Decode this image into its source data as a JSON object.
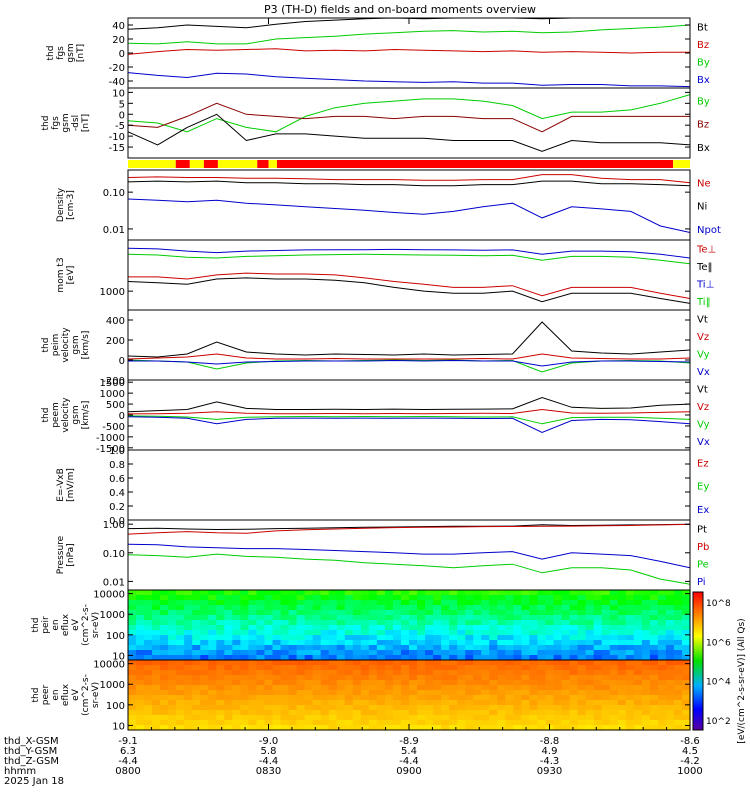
{
  "chart_data": {
    "type": "line",
    "title": "P3 (TH-D) fields and on-board moments overview",
    "panels": [
      {
        "id": "fgs_gsm",
        "ylabel": [
          "thd",
          "fgs",
          "gsm",
          "[nT]"
        ],
        "ylim": [
          -50,
          50
        ],
        "scale": "linear",
        "ticks": [
          "40",
          "20",
          "0",
          "-20",
          "-40"
        ],
        "tick_values": [
          40,
          20,
          0,
          -20,
          -40
        ],
        "series": [
          {
            "name": "Bt",
            "color": "#000000",
            "y": [
              34,
              36,
              40,
              38,
              36,
              41,
              45,
              47,
              49,
              50,
              49,
              50,
              50,
              50,
              49,
              50,
              50,
              50,
              50,
              51
            ]
          },
          {
            "name": "Bz",
            "color": "#cc0000",
            "y": [
              -2,
              2,
              5,
              4,
              5,
              6,
              3,
              4,
              3,
              5,
              4,
              3,
              2,
              3,
              1,
              2,
              1,
              0,
              1,
              1
            ]
          },
          {
            "name": "By",
            "color": "#00cc00",
            "y": [
              14,
              13,
              16,
              13,
              13,
              20,
              22,
              24,
              27,
              29,
              31,
              32,
              30,
              31,
              29,
              30,
              33,
              35,
              37,
              40
            ]
          },
          {
            "name": "Bx",
            "color": "#0000cc",
            "y": [
              -28,
              -32,
              -35,
              -29,
              -30,
              -34,
              -36,
              -38,
              -40,
              -41,
              -42,
              -41,
              -43,
              -43,
              -46,
              -45,
              -45,
              -47,
              -47,
              -48
            ]
          }
        ]
      },
      {
        "id": "fgs_dsl",
        "ylabel": [
          "thd",
          "fgs",
          "gsm",
          "-dsl",
          "[nT]"
        ],
        "ylim": [
          -20,
          12
        ],
        "scale": "linear",
        "ticks": [
          "10",
          "5",
          "0",
          "-5",
          "-10",
          "-15"
        ],
        "tick_values": [
          10,
          5,
          0,
          -5,
          -10,
          -15
        ],
        "series": [
          {
            "name": "By",
            "color": "#00cc00",
            "y": [
              -3,
              -4,
              -8,
              -2,
              -6,
              -8,
              -1,
              3,
              5,
              6,
              7,
              7,
              6,
              4,
              -2,
              1,
              1,
              2,
              5,
              9
            ]
          },
          {
            "name": "Bz",
            "color": "#880000",
            "y": [
              -5,
              -6,
              -1,
              5,
              0,
              -1,
              -2,
              -1,
              -1,
              -2,
              -1,
              -1,
              -2,
              -2,
              -8,
              -1,
              -1,
              -1,
              -1,
              -1
            ]
          },
          {
            "name": "Bx",
            "color": "#000000",
            "y": [
              -8,
              -14,
              -6,
              0,
              -12,
              -9,
              -9,
              -10,
              -11,
              -11,
              -11,
              -12,
              -12,
              -12,
              -17,
              -12,
              -13,
              -13,
              -13,
              -14
            ]
          }
        ]
      },
      {
        "id": "density",
        "ylabel": [
          "Density",
          "[cm-3]"
        ],
        "ylim": [
          0.005,
          0.4
        ],
        "scale": "log",
        "ticks": [
          "0.10",
          "0.01"
        ],
        "tick_values": [
          0.1,
          0.01
        ],
        "series": [
          {
            "name": "Ne",
            "color": "#cc0000",
            "y": [
              0.25,
              0.26,
              0.25,
              0.25,
              0.24,
              0.24,
              0.23,
              0.22,
              0.22,
              0.22,
              0.21,
              0.21,
              0.22,
              0.22,
              0.3,
              0.3,
              0.24,
              0.22,
              0.22,
              0.18
            ]
          },
          {
            "name": "Ni",
            "color": "#000000",
            "y": [
              0.19,
              0.2,
              0.19,
              0.2,
              0.18,
              0.18,
              0.17,
              0.17,
              0.16,
              0.16,
              0.15,
              0.15,
              0.16,
              0.16,
              0.2,
              0.2,
              0.17,
              0.17,
              0.16,
              0.15
            ]
          },
          {
            "name": "Npot",
            "color": "#0000cc",
            "y": [
              0.065,
              0.06,
              0.055,
              0.06,
              0.05,
              0.045,
              0.04,
              0.036,
              0.032,
              0.028,
              0.025,
              0.03,
              0.04,
              0.05,
              0.02,
              0.04,
              0.035,
              0.03,
              0.012,
              0.008
            ]
          }
        ]
      },
      {
        "id": "moms_temp",
        "ylabel": [
          "mom t3",
          "[eV]"
        ],
        "ylim": [
          400,
          12000
        ],
        "scale": "log",
        "ticks": [
          "1000"
        ],
        "tick_values": [
          1000
        ],
        "series": [
          {
            "name": "Te⊥",
            "color": "#cc0000",
            "y": [
              2000,
              2000,
              1800,
              2200,
              2400,
              2300,
              2300,
              2200,
              1900,
              1600,
              1400,
              1200,
              1200,
              1300,
              800,
              1200,
              1200,
              1200,
              900,
              700
            ]
          },
          {
            "name": "Te‖",
            "color": "#000000",
            "y": [
              1600,
              1500,
              1400,
              1800,
              1900,
              1800,
              1800,
              1700,
              1500,
              1200,
              1000,
              900,
              900,
              1000,
              600,
              900,
              900,
              900,
              700,
              550
            ]
          },
          {
            "name": "Ti⊥",
            "color": "#0000cc",
            "y": [
              8000,
              7800,
              7000,
              6500,
              7000,
              7200,
              7400,
              7500,
              7500,
              7600,
              7500,
              7400,
              7300,
              7400,
              6000,
              7000,
              7000,
              6800,
              6000,
              5000
            ]
          },
          {
            "name": "Ti‖",
            "color": "#00cc00",
            "y": [
              6000,
              5800,
              5200,
              5000,
              5400,
              5600,
              5800,
              5900,
              6000,
              5900,
              5800,
              5700,
              5600,
              5700,
              4500,
              5400,
              5400,
              5200,
              4500,
              3800
            ]
          }
        ]
      },
      {
        "id": "peim_velocity",
        "ylabel": [
          "thd",
          "peim",
          "velocity",
          "gsm",
          "[km/s]"
        ],
        "ylim": [
          -200,
          500
        ],
        "scale": "linear",
        "ticks": [
          "400",
          "200",
          "0",
          "-200"
        ],
        "tick_values": [
          400,
          200,
          0,
          -200
        ],
        "series": [
          {
            "name": "Vt",
            "color": "#000000",
            "y": [
              40,
              30,
              60,
              180,
              80,
              60,
              50,
              60,
              55,
              50,
              60,
              50,
              55,
              60,
              380,
              90,
              70,
              60,
              80,
              100
            ]
          },
          {
            "name": "Vz",
            "color": "#cc0000",
            "y": [
              10,
              20,
              30,
              60,
              20,
              10,
              10,
              15,
              10,
              10,
              10,
              10,
              15,
              10,
              60,
              20,
              15,
              10,
              10,
              20
            ]
          },
          {
            "name": "Vy",
            "color": "#00cc00",
            "y": [
              0,
              -10,
              -20,
              -90,
              -30,
              -10,
              -5,
              -10,
              -5,
              0,
              -5,
              0,
              -10,
              -5,
              -120,
              -30,
              -10,
              -5,
              -10,
              -30
            ]
          },
          {
            "name": "Vx",
            "color": "#0000cc",
            "y": [
              -10,
              -10,
              -20,
              -40,
              -20,
              -15,
              -10,
              -10,
              -10,
              -5,
              -10,
              -5,
              -10,
              -10,
              -60,
              -20,
              -10,
              -10,
              -15,
              -20
            ]
          }
        ]
      },
      {
        "id": "peem_velocity",
        "ylabel": [
          "thd",
          "peem",
          "velocity",
          "gsm",
          "[km/s]"
        ],
        "ylim": [
          -1600,
          1600
        ],
        "scale": "linear",
        "ticks": [
          "1500",
          "1000",
          "500",
          "0",
          "-500",
          "-1000",
          "-1500"
        ],
        "tick_values": [
          1500,
          1000,
          500,
          0,
          -500,
          -1000,
          -1500
        ],
        "series": [
          {
            "name": "Vt",
            "color": "#000000",
            "y": [
              150,
              200,
              250,
              600,
              300,
              250,
              250,
              260,
              250,
              270,
              250,
              260,
              270,
              280,
              800,
              350,
              300,
              320,
              450,
              500
            ]
          },
          {
            "name": "Vz",
            "color": "#cc0000",
            "y": [
              50,
              60,
              80,
              150,
              80,
              60,
              60,
              70,
              60,
              70,
              60,
              70,
              80,
              70,
              250,
              90,
              80,
              90,
              120,
              150
            ]
          },
          {
            "name": "Vy",
            "color": "#00cc00",
            "y": [
              -40,
              -60,
              -90,
              -200,
              -100,
              -80,
              -70,
              -80,
              -70,
              -80,
              -70,
              -80,
              -90,
              -80,
              -400,
              -120,
              -100,
              -100,
              -150,
              -200
            ]
          },
          {
            "name": "Vx",
            "color": "#0000cc",
            "y": [
              -80,
              -100,
              -150,
              -400,
              -200,
              -150,
              -140,
              -150,
              -140,
              -150,
              -140,
              -150,
              -160,
              -150,
              -800,
              -250,
              -200,
              -220,
              -300,
              -400
            ]
          }
        ]
      },
      {
        "id": "efield",
        "ylabel": [
          "E=-VxB",
          "[mV/m]"
        ],
        "ylim": [
          0,
          1.0
        ],
        "scale": "linear",
        "ticks": [
          "1.0",
          "0.8",
          "0.6",
          "0.4",
          "0.2",
          "0.0"
        ],
        "tick_values": [
          1.0,
          0.8,
          0.6,
          0.4,
          0.2,
          0.0
        ],
        "series": [
          {
            "name": "Ez",
            "color": "#cc0000",
            "y": []
          },
          {
            "name": "Ey",
            "color": "#00cc00",
            "y": []
          },
          {
            "name": "Ex",
            "color": "#0000cc",
            "y": []
          }
        ]
      },
      {
        "id": "pressure",
        "ylabel": [
          "Pressure",
          "[nPa]"
        ],
        "ylim": [
          0.005,
          1.4
        ],
        "scale": "log",
        "ticks": [
          "1.00",
          "0.10",
          "0.01"
        ],
        "tick_values": [
          1.0,
          0.1,
          0.01
        ],
        "series": [
          {
            "name": "Pt",
            "color": "#000000",
            "y": [
              0.7,
              0.72,
              0.68,
              0.65,
              0.66,
              0.7,
              0.72,
              0.75,
              0.78,
              0.8,
              0.82,
              0.84,
              0.85,
              0.86,
              0.95,
              0.9,
              0.92,
              0.94,
              0.97,
              1.0
            ]
          },
          {
            "name": "Pb",
            "color": "#cc0000",
            "y": [
              0.45,
              0.5,
              0.55,
              0.5,
              0.48,
              0.58,
              0.64,
              0.68,
              0.72,
              0.76,
              0.78,
              0.8,
              0.82,
              0.83,
              0.85,
              0.86,
              0.88,
              0.9,
              0.94,
              0.98
            ]
          },
          {
            "name": "Pe",
            "color": "#00cc00",
            "y": [
              0.085,
              0.08,
              0.07,
              0.09,
              0.075,
              0.07,
              0.06,
              0.055,
              0.045,
              0.04,
              0.035,
              0.03,
              0.035,
              0.04,
              0.02,
              0.03,
              0.03,
              0.025,
              0.012,
              0.008
            ]
          },
          {
            "name": "Pi",
            "color": "#0000cc",
            "y": [
              0.2,
              0.19,
              0.16,
              0.15,
              0.14,
              0.14,
              0.13,
              0.12,
              0.11,
              0.1,
              0.09,
              0.09,
              0.1,
              0.11,
              0.06,
              0.1,
              0.09,
              0.08,
              0.05,
              0.03
            ]
          }
        ]
      },
      {
        "id": "peir_en_eflux",
        "type": "heatmap",
        "ylabel": [
          "thd",
          "peir",
          "en",
          "eflux",
          "eV",
          "(cm^2-s-",
          "sr-eV)"
        ],
        "ylim": [
          6,
          15000
        ],
        "scale": "log",
        "ticks": [
          "10000",
          "1000",
          "100",
          "10"
        ],
        "tick_values": [
          10000,
          1000,
          100,
          10
        ]
      },
      {
        "id": "peer_en_eflux",
        "type": "heatmap",
        "ylabel": [
          "thd",
          "peer",
          "en",
          "eflux",
          "eV",
          "(cm^2-s-",
          "sr-eV)"
        ],
        "ylim": [
          6,
          15000
        ],
        "scale": "log",
        "ticks": [
          "10000",
          "1000",
          "100",
          "10"
        ],
        "tick_values": [
          10000,
          1000,
          100,
          10
        ]
      }
    ],
    "colorbar": {
      "label": "[eV/(cm^2-s-sr-eV)] (All Qs)",
      "ticks": [
        "10^8",
        "10^6",
        "10^4",
        "10^2"
      ]
    },
    "x_axis": {
      "rows": [
        {
          "label": "thd_X-GSM",
          "values": [
            "-9.1",
            "-9.0",
            "-8.9",
            "-8.8",
            "-8.6"
          ]
        },
        {
          "label": "thd_Y-GSM",
          "values": [
            "6.3",
            "5.8",
            "5.4",
            "4.9",
            "4.5"
          ]
        },
        {
          "label": "thd_Z-GSM",
          "values": [
            "-4.4",
            "-4.4",
            "-4.4",
            "-4.3",
            "-4.2"
          ]
        },
        {
          "label": "hhmm",
          "values": [
            "0800",
            "0830",
            "0900",
            "0930",
            "1000"
          ]
        }
      ],
      "date": "2025 Jan 18",
      "range_hours": [
        8,
        10
      ]
    },
    "mode_bar": {
      "colors": [
        "#ffff00",
        "#ff0000"
      ],
      "segments": [
        {
          "from": 0,
          "to": 0.085,
          "c": 0
        },
        {
          "from": 0.085,
          "to": 0.11,
          "c": 1
        },
        {
          "from": 0.11,
          "to": 0.135,
          "c": 0
        },
        {
          "from": 0.135,
          "to": 0.16,
          "c": 1
        },
        {
          "from": 0.16,
          "to": 0.23,
          "c": 0
        },
        {
          "from": 0.23,
          "to": 0.25,
          "c": 1
        },
        {
          "from": 0.25,
          "to": 0.265,
          "c": 0
        },
        {
          "from": 0.265,
          "to": 0.97,
          "c": 1
        },
        {
          "from": 0.97,
          "to": 1.0,
          "c": 0
        }
      ]
    }
  }
}
